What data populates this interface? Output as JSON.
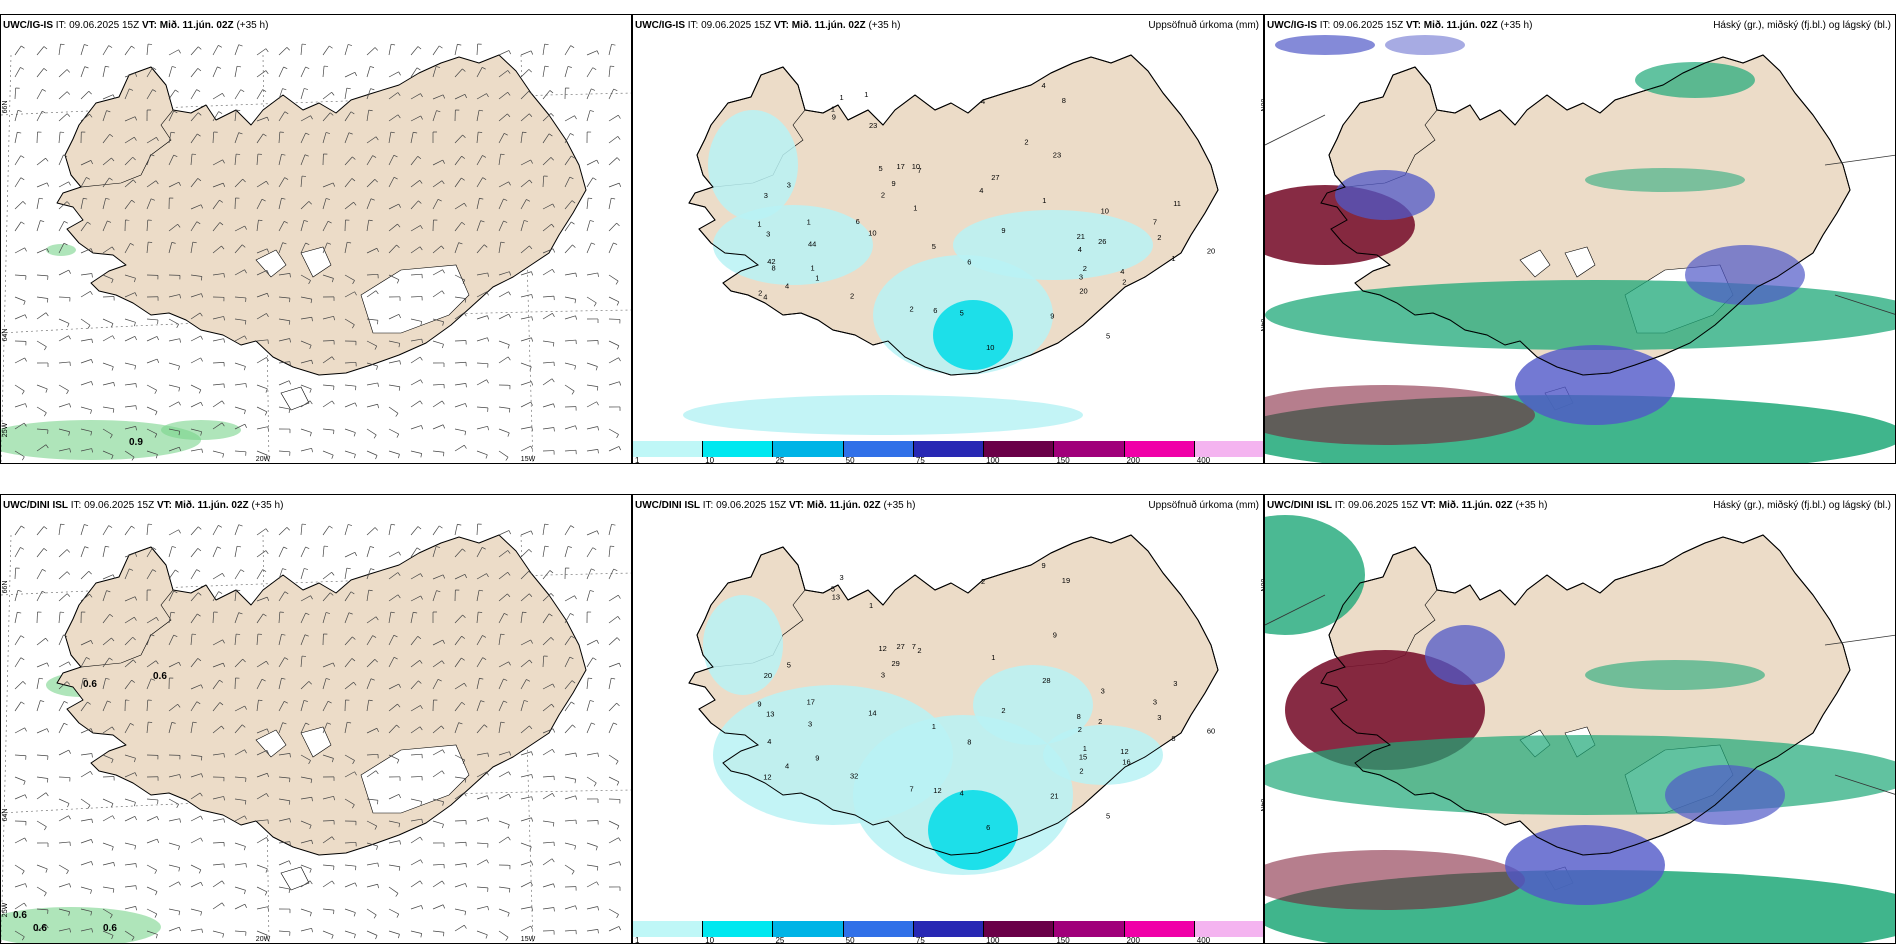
{
  "panels": [
    {
      "id": "p1",
      "model": "UWC/IG-IS",
      "it": "IT: 09.06.2025 15Z",
      "vt": "VT: Mið. 11.jún. 02Z",
      "lead": "(+35 h)",
      "right_title": ""
    },
    {
      "id": "p2",
      "model": "UWC/IG-IS",
      "it": "IT: 09.06.2025 15Z",
      "vt": "VT: Mið. 11.jún. 02Z",
      "lead": "(+35 h)",
      "right_title": "Uppsöfnuð úrkoma (mm)"
    },
    {
      "id": "p3",
      "model": "UWC/IG-IS",
      "it": "IT: 09.06.2025 15Z",
      "vt": "VT: Mið. 11.jún. 02Z",
      "lead": "(+35 h)",
      "right_title": "Háský (gr.), miðský (fj.bl.) og lágský (bl.)"
    },
    {
      "id": "p4",
      "model": "UWC/DINI ISL",
      "it": "IT: 09.06.2025 15Z",
      "vt": "VT: Mið. 11.jún. 02Z",
      "lead": "(+35 h)",
      "right_title": ""
    },
    {
      "id": "p5",
      "model": "UWC/DINI ISL",
      "it": "IT: 09.06.2025 15Z",
      "vt": "VT: Mið. 11.jún. 02Z",
      "lead": "(+35 h)",
      "right_title": "Uppsöfnuð úrkoma (mm)"
    },
    {
      "id": "p6",
      "model": "UWC/DINI ISL",
      "it": "IT: 09.06.2025 15Z",
      "vt": "VT: Mið. 11.jún. 02Z",
      "lead": "(+35 h)",
      "right_title": "Háský (gr.), miðský (fj.bl.) og lágský (bl.)"
    }
  ],
  "axes": {
    "lat66": "66N",
    "lat64": "64N",
    "lon25": "25W",
    "lon20": "20W",
    "lon15": "15W"
  },
  "wind_values": {
    "top": [
      {
        "v": "0.9"
      }
    ],
    "bottom": [
      {
        "v": "0.6"
      },
      {
        "v": "0.6"
      },
      {
        "v": "0.6"
      },
      {
        "v": "0.6"
      },
      {
        "v": "0.6"
      }
    ]
  },
  "precip_top": [
    "4",
    "2",
    "1",
    "7",
    "5",
    "4",
    "8",
    "5",
    "1",
    "2",
    "11",
    "6",
    "9",
    "10",
    "1",
    "2",
    "1",
    "4",
    "1",
    "2",
    "3",
    "9",
    "10",
    "10",
    "9",
    "9",
    "10",
    "7",
    "2",
    "3",
    "1",
    "5",
    "4",
    "6",
    "4",
    "2",
    "1",
    "3",
    "20",
    "17",
    "21",
    "20",
    "23",
    "44",
    "26",
    "23",
    "27",
    "42",
    "4",
    "3",
    "5",
    "1",
    "6",
    "2",
    "2",
    "1",
    "1",
    "4",
    "8"
  ],
  "precip_bottom": [
    "2",
    "3",
    "3",
    "2",
    "5",
    "12",
    "19",
    "12",
    "9",
    "7",
    "3",
    "8",
    "2",
    "7",
    "9",
    "3",
    "8",
    "9",
    "5",
    "1",
    "13",
    "13",
    "3",
    "6",
    "21",
    "29",
    "14",
    "3",
    "16",
    "15",
    "17",
    "4",
    "4",
    "12",
    "12",
    "32",
    "28",
    "20",
    "60",
    "27",
    "8",
    "2",
    "9",
    "3",
    "2",
    "1",
    "1",
    "4",
    "2",
    "5",
    "1"
  ],
  "colorbar": [
    {
      "label": "1",
      "color": "#bff7f7"
    },
    {
      "label": "10",
      "color": "#00e8f0"
    },
    {
      "label": "25",
      "color": "#00b4e6"
    },
    {
      "label": "50",
      "color": "#3070e8"
    },
    {
      "label": "75",
      "color": "#2828b4"
    },
    {
      "label": "100",
      "color": "#6a0048"
    },
    {
      "label": "150",
      "color": "#a0007a"
    },
    {
      "label": "200",
      "color": "#f000a8"
    },
    {
      "label": "400",
      "color": "#f4b4f0"
    }
  ],
  "colors": {
    "land": "#ecdcc8",
    "coast": "#000000",
    "precip_light": "#b8f2f4",
    "precip_mid": "#00dce8",
    "high_cloud": "#1ea878",
    "mid_cloud": "#5058c8",
    "low_cloud": "#7a1430"
  }
}
